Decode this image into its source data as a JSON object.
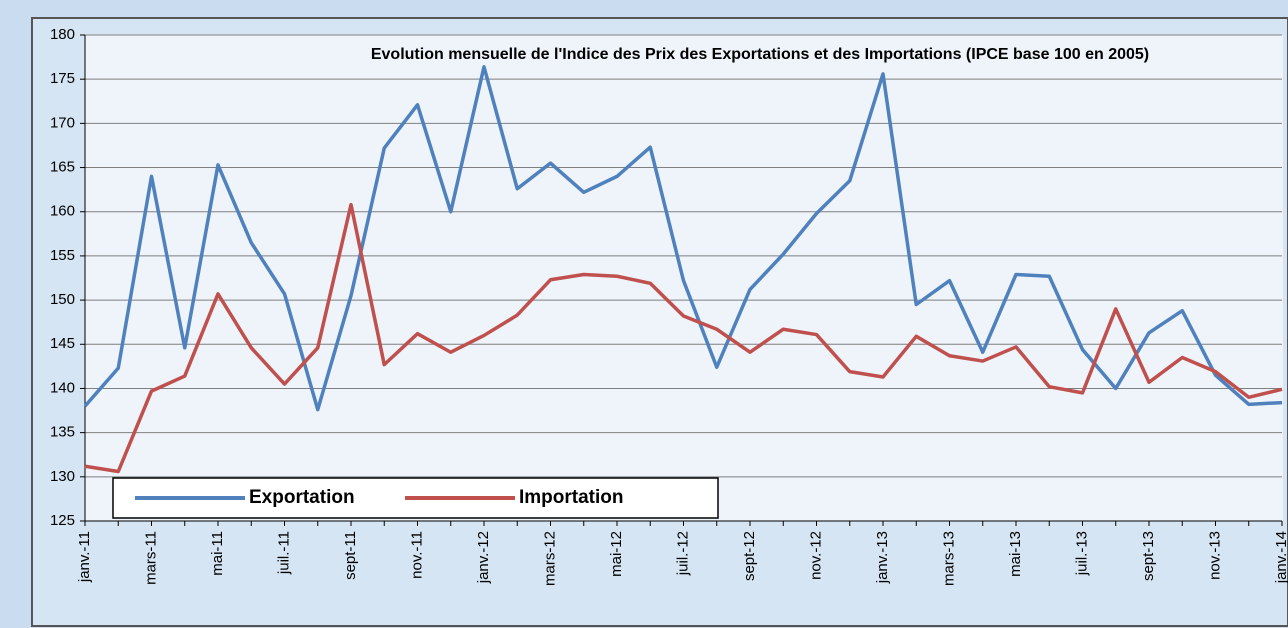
{
  "chart_data": {
    "type": "line",
    "title": "Evolution mensuelle de l'Indice des Prix des Exportations et des Importations (IPCE base 100 en 2005)",
    "categories": [
      "janv.-11",
      null,
      "mars-11",
      null,
      "mai-11",
      null,
      "juil.-11",
      null,
      "sept-11",
      null,
      "nov.-11",
      null,
      "janv.-12",
      null,
      "mars-12",
      null,
      "mai-12",
      null,
      "juil.-12",
      null,
      "sept-12",
      null,
      "nov.-12",
      null,
      "janv.-13",
      null,
      "mars-13",
      null,
      "mai-13",
      null,
      "juil.-13",
      null,
      "sept-13",
      null,
      "nov.-13",
      null,
      "janv.-14"
    ],
    "series": [
      {
        "name": "Exportation",
        "color": "#4f81bd",
        "values": [
          138,
          142.3,
          164,
          144.6,
          165.3,
          156.5,
          150.7,
          137.6,
          150.5,
          167.2,
          172.1,
          160,
          176.4,
          162.6,
          165.5,
          162.2,
          164,
          167.3,
          152.2,
          142.4,
          151.2,
          155.2,
          159.8,
          163.5,
          175.6,
          149.5,
          152.2,
          144.1,
          152.9,
          152.7,
          144.4,
          140,
          146.3,
          148.8,
          141.5,
          138.2,
          138.4
        ]
      },
      {
        "name": "Importation",
        "color": "#c0504d",
        "values": [
          131.2,
          130.6,
          139.7,
          141.4,
          150.7,
          144.6,
          140.5,
          144.6,
          160.8,
          142.7,
          146.2,
          144.1,
          146,
          148.3,
          152.3,
          152.9,
          152.7,
          151.9,
          148.2,
          146.7,
          144.1,
          146.7,
          146.1,
          141.9,
          141.3,
          145.9,
          143.7,
          143.1,
          144.7,
          140.2,
          139.5,
          149,
          140.7,
          143.5,
          141.9,
          139,
          139.9
        ]
      }
    ],
    "ylim": [
      125,
      180
    ],
    "yticks": [
      125,
      130,
      135,
      140,
      145,
      150,
      155,
      160,
      165,
      170,
      175,
      180
    ],
    "grid": true,
    "legend": "bottom-left"
  }
}
